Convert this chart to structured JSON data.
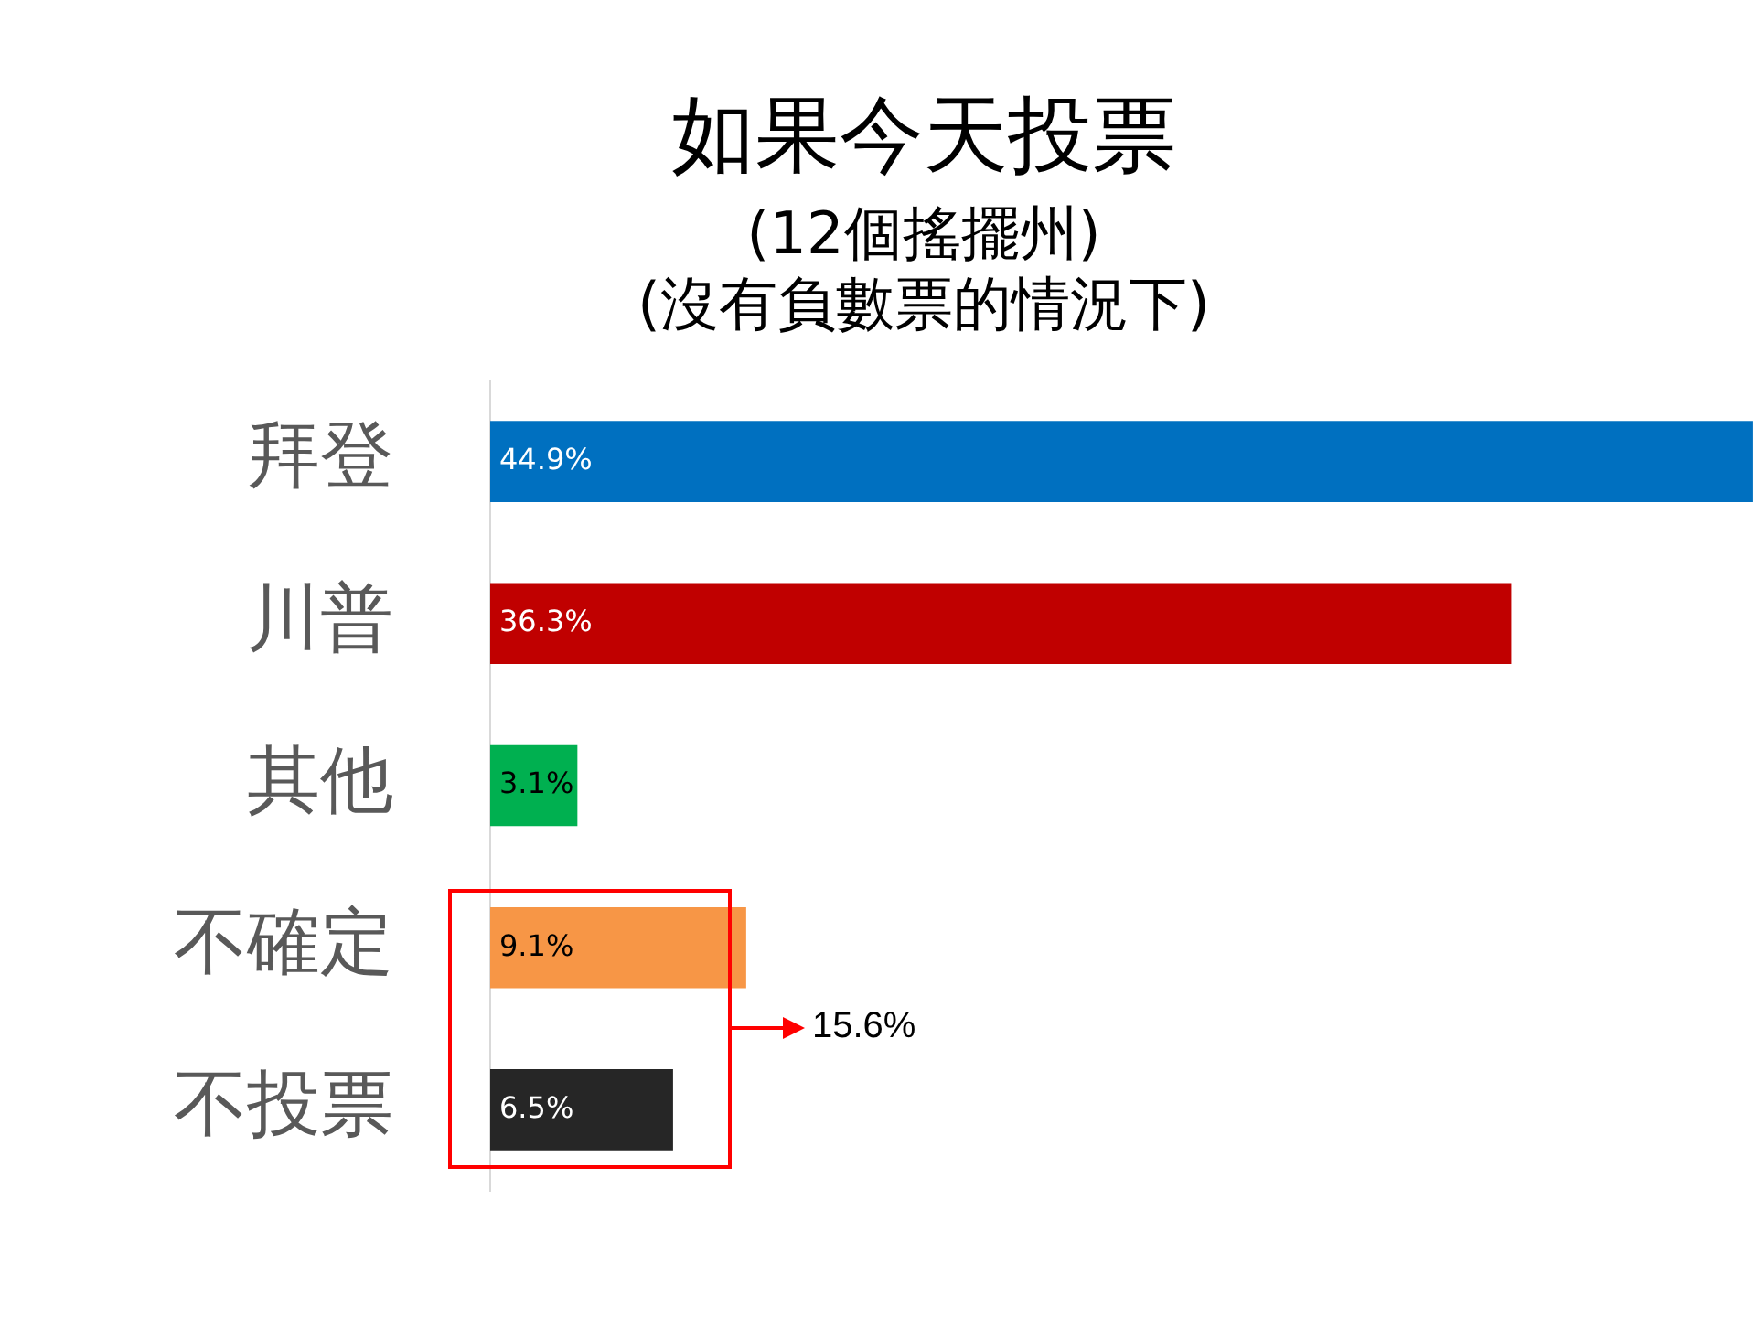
{
  "chart_data": {
    "type": "bar",
    "orientation": "horizontal",
    "title": "如果今天投票",
    "subtitle": "(12個搖擺州)\n(沒有負數票的情況下)",
    "categories": [
      "拜登",
      "川普",
      "其他",
      "不確定",
      "不投票"
    ],
    "values": [
      44.9,
      36.3,
      3.1,
      9.1,
      6.5
    ],
    "colors": [
      "#0070c0",
      "#c00000",
      "#00b050",
      "#f79646",
      "#262626"
    ],
    "value_labels": [
      "44.9%",
      "36.3%",
      "3.1%",
      "9.1%",
      "6.5%"
    ],
    "tick_labels": "y",
    "legend": false,
    "annotations": [
      "15.6%"
    ]
  }
}
